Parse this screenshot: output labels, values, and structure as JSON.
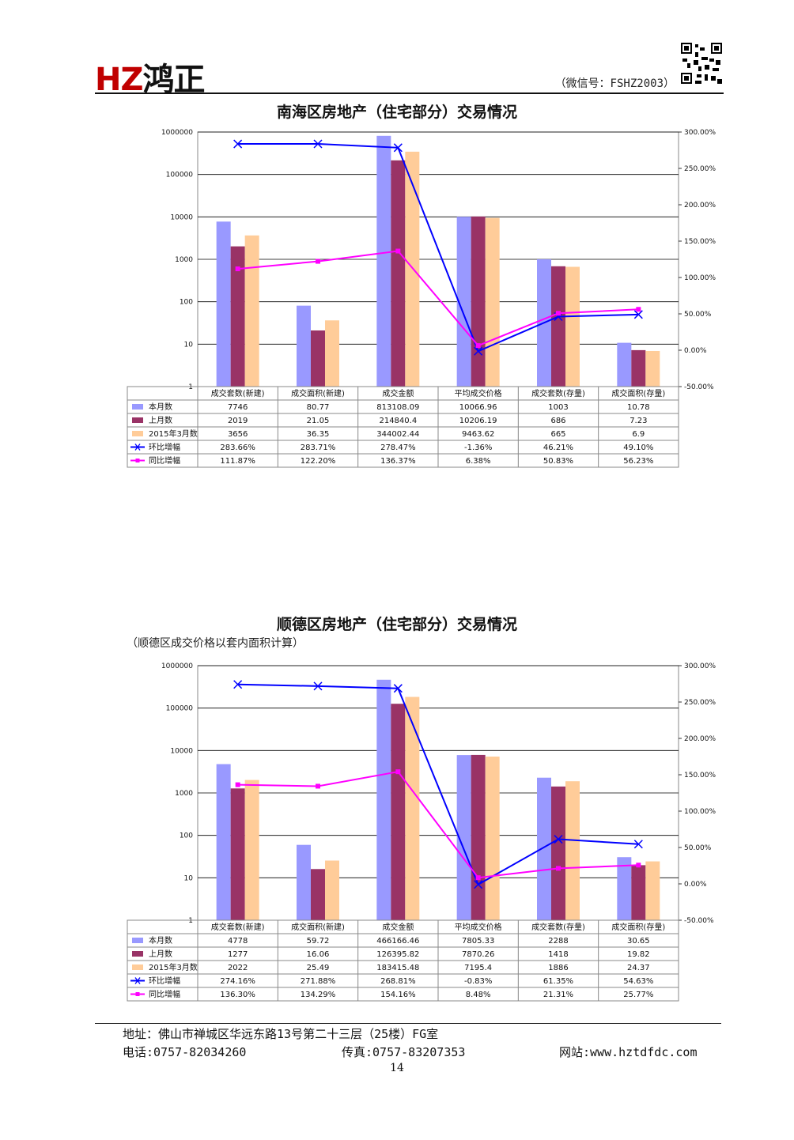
{
  "header": {
    "logo_latin": "HZ",
    "logo_cjk": "鸿正",
    "wechat": "（微信号：FSHZ2003）"
  },
  "chart_data": [
    {
      "type": "bar",
      "title": "南海区房地产（住宅部分）交易情况",
      "categories": [
        "成交套数(新建)",
        "成交面积(新建)",
        "成交金额",
        "平均成交价格",
        "成交套数(存量)",
        "成交面积(存量)"
      ],
      "y_scale": "log",
      "ylim": [
        1,
        1000000
      ],
      "y_ticks": [
        "1",
        "10",
        "100",
        "1000",
        "10000",
        "100000",
        "1000000"
      ],
      "y2lim": [
        -50,
        300
      ],
      "y2_ticks": [
        "-50.00%",
        "0.00%",
        "50.00%",
        "100.00%",
        "150.00%",
        "200.00%",
        "250.00%",
        "300.00%"
      ],
      "series": [
        {
          "name": "本月数",
          "kind": "bar",
          "color": "#9999ff",
          "values": [
            7746,
            80.77,
            813108.09,
            10066.96,
            1003,
            10.78
          ],
          "labels": [
            "7746",
            "80.77",
            "813108.09",
            "10066.96",
            "1003",
            "10.78"
          ]
        },
        {
          "name": "上月数",
          "kind": "bar",
          "color": "#993366",
          "values": [
            2019,
            21.05,
            214840.4,
            10206.19,
            686,
            7.23
          ],
          "labels": [
            "2019",
            "21.05",
            "214840.4",
            "10206.19",
            "686",
            "7.23"
          ]
        },
        {
          "name": "2015年3月数",
          "kind": "bar",
          "color": "#ffcc99",
          "values": [
            3656,
            36.35,
            344002.44,
            9463.62,
            665,
            6.9
          ],
          "labels": [
            "3656",
            "36.35",
            "344002.44",
            "9463.62",
            "665",
            "6.9"
          ]
        },
        {
          "name": "环比增幅",
          "kind": "line",
          "axis": "right",
          "color": "#0000ff",
          "marker": "x",
          "values": [
            283.66,
            283.71,
            278.47,
            -1.36,
            46.21,
            49.1
          ],
          "labels": [
            "283.66%",
            "283.71%",
            "278.47%",
            "-1.36%",
            "46.21%",
            "49.10%"
          ]
        },
        {
          "name": "同比增幅",
          "kind": "line",
          "axis": "right",
          "color": "#ff00ff",
          "marker": "square",
          "values": [
            111.87,
            122.2,
            136.37,
            6.38,
            50.83,
            56.23
          ],
          "labels": [
            "111.87%",
            "122.20%",
            "136.37%",
            "6.38%",
            "50.83%",
            "56.23%"
          ]
        }
      ]
    },
    {
      "type": "bar",
      "title": "顺德区房地产（住宅部分）交易情况",
      "note": "（顺德区成交价格以套内面积计算）",
      "categories": [
        "成交套数(新建)",
        "成交面积(新建)",
        "成交金额",
        "平均成交价格",
        "成交套数(存量)",
        "成交面积(存量)"
      ],
      "y_scale": "log",
      "ylim": [
        1,
        1000000
      ],
      "y_ticks": [
        "1",
        "10",
        "100",
        "1000",
        "10000",
        "100000",
        "1000000"
      ],
      "y2lim": [
        -50,
        300
      ],
      "y2_ticks": [
        "-50.00%",
        "0.00%",
        "50.00%",
        "100.00%",
        "150.00%",
        "200.00%",
        "250.00%",
        "300.00%"
      ],
      "series": [
        {
          "name": "本月数",
          "kind": "bar",
          "color": "#9999ff",
          "values": [
            4778,
            59.72,
            466166.46,
            7805.33,
            2288,
            30.65
          ],
          "labels": [
            "4778",
            "59.72",
            "466166.46",
            "7805.33",
            "2288",
            "30.65"
          ]
        },
        {
          "name": "上月数",
          "kind": "bar",
          "color": "#993366",
          "values": [
            1277,
            16.06,
            126395.82,
            7870.26,
            1418,
            19.82
          ],
          "labels": [
            "1277",
            "16.06",
            "126395.82",
            "7870.26",
            "1418",
            "19.82"
          ]
        },
        {
          "name": "2015年3月数",
          "kind": "bar",
          "color": "#ffcc99",
          "values": [
            2022,
            25.49,
            183415.48,
            7195.4,
            1886,
            24.37
          ],
          "labels": [
            "2022",
            "25.49",
            "183415.48",
            "7195.4",
            "1886",
            "24.37"
          ]
        },
        {
          "name": "环比增幅",
          "kind": "line",
          "axis": "right",
          "color": "#0000ff",
          "marker": "x",
          "values": [
            274.16,
            271.88,
            268.81,
            -0.83,
            61.35,
            54.63
          ],
          "labels": [
            "274.16%",
            "271.88%",
            "268.81%",
            "-0.83%",
            "61.35%",
            "54.63%"
          ]
        },
        {
          "name": "同比增幅",
          "kind": "line",
          "axis": "right",
          "color": "#ff00ff",
          "marker": "square",
          "values": [
            136.3,
            134.29,
            154.16,
            8.48,
            21.31,
            25.77
          ],
          "labels": [
            "136.30%",
            "134.29%",
            "154.16%",
            "8.48%",
            "21.31%",
            "25.77%"
          ]
        }
      ]
    }
  ],
  "footer": {
    "address": "地址：佛山市禅城区华远东路13号第二十三层（25楼）FG室",
    "phone": "电话:0757-82034260",
    "fax": "传真:0757-83207353",
    "website": "网站:www.hztdfdc.com",
    "page_number": "14"
  }
}
